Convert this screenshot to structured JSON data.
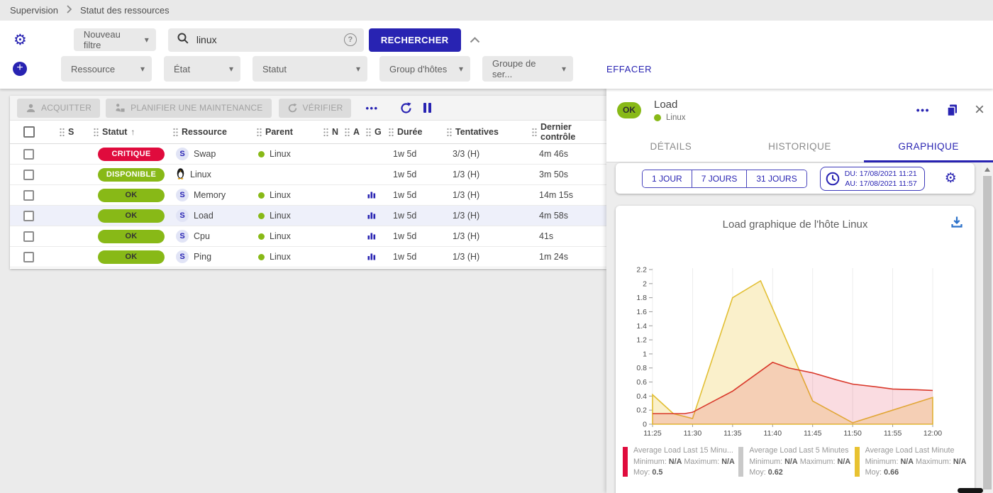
{
  "colors": {
    "primary": "#2823b2",
    "ok_green": "#88b917",
    "critical_red": "#e00b3d",
    "download_blue": "#2a70c9"
  },
  "breadcrumb": {
    "items": [
      "Supervision",
      "Statut des ressources"
    ]
  },
  "filters": {
    "saved_filter": "Nouveau filtre",
    "search_value": "linux",
    "search_button": "RECHERCHER",
    "criteria": [
      "Ressource",
      "État",
      "Statut",
      "Group d'hôtes",
      "Groupe de ser..."
    ],
    "clear_label": "EFFACER"
  },
  "toolbar": {
    "acknowledge": "ACQUITTER",
    "downtime": "PLANIFIER UNE MAINTENANCE",
    "check": "VÉRIFIER"
  },
  "table": {
    "headers": [
      "S",
      "Statut",
      "Ressource",
      "Parent",
      "N",
      "A",
      "G",
      "Durée",
      "Tentatives",
      "Dernier contrôle"
    ],
    "sorted_column": "Statut",
    "rows": [
      {
        "status": "CRITIQUE",
        "status_bg": "#e00b3d",
        "status_fg": "#ffffff",
        "icon": "S",
        "resource": "Swap",
        "parent": "Linux",
        "graph": false,
        "duration": "1w 5d",
        "tries": "3/3 (H)",
        "last_check": "4m 46s",
        "selected": false
      },
      {
        "status": "DISPONIBLE",
        "status_bg": "#88b917",
        "status_fg": "#ffffff",
        "icon": "penguin",
        "resource": "Linux",
        "parent": "",
        "graph": false,
        "duration": "1w 5d",
        "tries": "1/3 (H)",
        "last_check": "3m 50s",
        "selected": false
      },
      {
        "status": "OK",
        "status_bg": "#88b917",
        "status_fg": "#333333",
        "icon": "S",
        "resource": "Memory",
        "parent": "Linux",
        "graph": true,
        "duration": "1w 5d",
        "tries": "1/3 (H)",
        "last_check": "14m 15s",
        "selected": false
      },
      {
        "status": "OK",
        "status_bg": "#88b917",
        "status_fg": "#333333",
        "icon": "S",
        "resource": "Load",
        "parent": "Linux",
        "graph": true,
        "duration": "1w 5d",
        "tries": "1/3 (H)",
        "last_check": "4m 58s",
        "selected": true
      },
      {
        "status": "OK",
        "status_bg": "#88b917",
        "status_fg": "#333333",
        "icon": "S",
        "resource": "Cpu",
        "parent": "Linux",
        "graph": true,
        "duration": "1w 5d",
        "tries": "1/3 (H)",
        "last_check": "41s",
        "selected": false
      },
      {
        "status": "OK",
        "status_bg": "#88b917",
        "status_fg": "#333333",
        "icon": "S",
        "resource": "Ping",
        "parent": "Linux",
        "graph": true,
        "duration": "1w 5d",
        "tries": "1/3 (H)",
        "last_check": "1m 24s",
        "selected": false
      }
    ]
  },
  "panel": {
    "status": "OK",
    "title": "Load",
    "host": "Linux",
    "tabs": [
      {
        "label": "DÉTAILS",
        "active": false
      },
      {
        "label": "HISTORIQUE",
        "active": false
      },
      {
        "label": "GRAPHIQUE",
        "active": true
      }
    ],
    "time_buttons": [
      "1 JOUR",
      "7 JOURS",
      "31 JOURS"
    ],
    "date_from": "DU: 17/08/2021 11:21",
    "date_to": "AU: 17/08/2021 11:57"
  },
  "chart_data": {
    "type": "area",
    "title": "Load graphique de l'hôte Linux",
    "x_ticks": [
      "11:25",
      "11:30",
      "11:35",
      "11:40",
      "11:45",
      "11:50",
      "11:55",
      "12:00"
    ],
    "x_span_minutes": 35,
    "ylim": [
      0,
      2.2
    ],
    "y_step": 0.2,
    "grid": "vertical-only",
    "series": [
      {
        "name": "Average Load Last Minute",
        "line_color": "#e2bf33",
        "fill_color": "#faf0cb",
        "points": [
          [
            0,
            0.42
          ],
          [
            2.6,
            0.15
          ],
          [
            5,
            0.08
          ],
          [
            10,
            1.8
          ],
          [
            13.5,
            2.04
          ],
          [
            20,
            0.33
          ],
          [
            25,
            0.02
          ],
          [
            35,
            0.38
          ]
        ]
      },
      {
        "name": "Average Load Last 5 Minutes",
        "line_color": "#c9c9c9",
        "fill_color": "none",
        "points": []
      },
      {
        "name": "Average Load Last 15 Minutes",
        "line_color": "#d9382a",
        "fill_color": "rgba(224,40,70,0.16)",
        "points": [
          [
            0,
            0.15
          ],
          [
            4,
            0.15
          ],
          [
            5,
            0.17
          ],
          [
            10,
            0.47
          ],
          [
            15,
            0.88
          ],
          [
            17,
            0.8
          ],
          [
            20,
            0.73
          ],
          [
            23,
            0.63
          ],
          [
            25,
            0.57
          ],
          [
            28,
            0.53
          ],
          [
            30,
            0.5
          ],
          [
            33,
            0.49
          ],
          [
            35,
            0.48
          ]
        ]
      }
    ],
    "legend": [
      {
        "name": "Average Load Last 15 Minu...",
        "color": "#e00b3d",
        "min": "N/A",
        "max": "N/A",
        "avg": "0.5"
      },
      {
        "name": "Average Load Last 5 Minutes",
        "color": "#c9c9c9",
        "min": "N/A",
        "max": "N/A",
        "avg": "0.62"
      },
      {
        "name": "Average Load Last Minute",
        "color": "#e8c231",
        "min": "N/A",
        "max": "N/A",
        "avg": "0.66"
      }
    ],
    "legend_labels": {
      "min": "Minimum:",
      "max": "Maximum:",
      "avg": "Moy:"
    }
  }
}
